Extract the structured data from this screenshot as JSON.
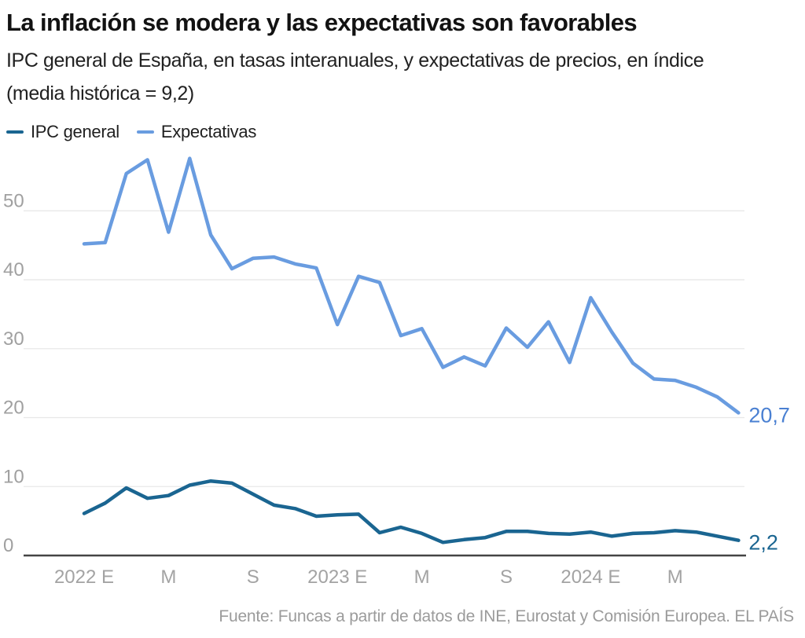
{
  "title": "La inflación se modera y las expectativas son favorables",
  "subtitle": {
    "line1": "IPC general de España, en tasas interanuales, y expectativas de precios, en índice",
    "line2": "(media histórica = 9,2)"
  },
  "legend": {
    "items": [
      {
        "label": "IPC general",
        "color": "#1a6591"
      },
      {
        "label": "Expectativas",
        "color": "#699ce0"
      }
    ]
  },
  "source": "Fuente: Funcas a partir de datos de INE, Eurostat y Comisión Europea. EL PAÍS",
  "chart_data": {
    "type": "line",
    "x_start": "2022-01",
    "x_frequency": "monthly",
    "n_points": 32,
    "x_ticks": [
      {
        "label": "2022 E",
        "index": 0
      },
      {
        "label": "M",
        "index": 4
      },
      {
        "label": "S",
        "index": 8
      },
      {
        "label": "2023 E",
        "index": 12
      },
      {
        "label": "M",
        "index": 16
      },
      {
        "label": "S",
        "index": 20
      },
      {
        "label": "2024 E",
        "index": 24
      },
      {
        "label": "M",
        "index": 28
      }
    ],
    "y_ticks": [
      0,
      10,
      20,
      30,
      40,
      50
    ],
    "ylim": [
      0,
      58.5
    ],
    "grid": "horizontal",
    "legend_position": "top-left",
    "series": [
      {
        "name": "IPC general",
        "color": "#1a6591",
        "end_label": "2,2",
        "end_label_color": "#1a6591",
        "values": [
          6.1,
          7.6,
          9.8,
          8.3,
          8.7,
          10.2,
          10.8,
          10.5,
          8.9,
          7.3,
          6.8,
          5.7,
          5.9,
          6.0,
          3.3,
          4.1,
          3.2,
          1.9,
          2.3,
          2.6,
          3.5,
          3.5,
          3.2,
          3.1,
          3.4,
          2.8,
          3.2,
          3.3,
          3.6,
          3.4,
          2.8,
          2.2
        ]
      },
      {
        "name": "Expectativas",
        "color": "#699ce0",
        "end_label": "20,7",
        "end_label_color": "#4a80d2",
        "values": [
          45.2,
          45.4,
          55.4,
          57.4,
          46.9,
          57.6,
          46.5,
          41.6,
          43.1,
          43.3,
          42.3,
          41.7,
          33.5,
          40.5,
          39.6,
          31.9,
          32.9,
          27.3,
          28.8,
          27.5,
          33.0,
          30.2,
          33.9,
          28.0,
          37.4,
          32.4,
          27.9,
          25.6,
          25.4,
          24.4,
          23.0,
          20.7
        ]
      }
    ]
  }
}
